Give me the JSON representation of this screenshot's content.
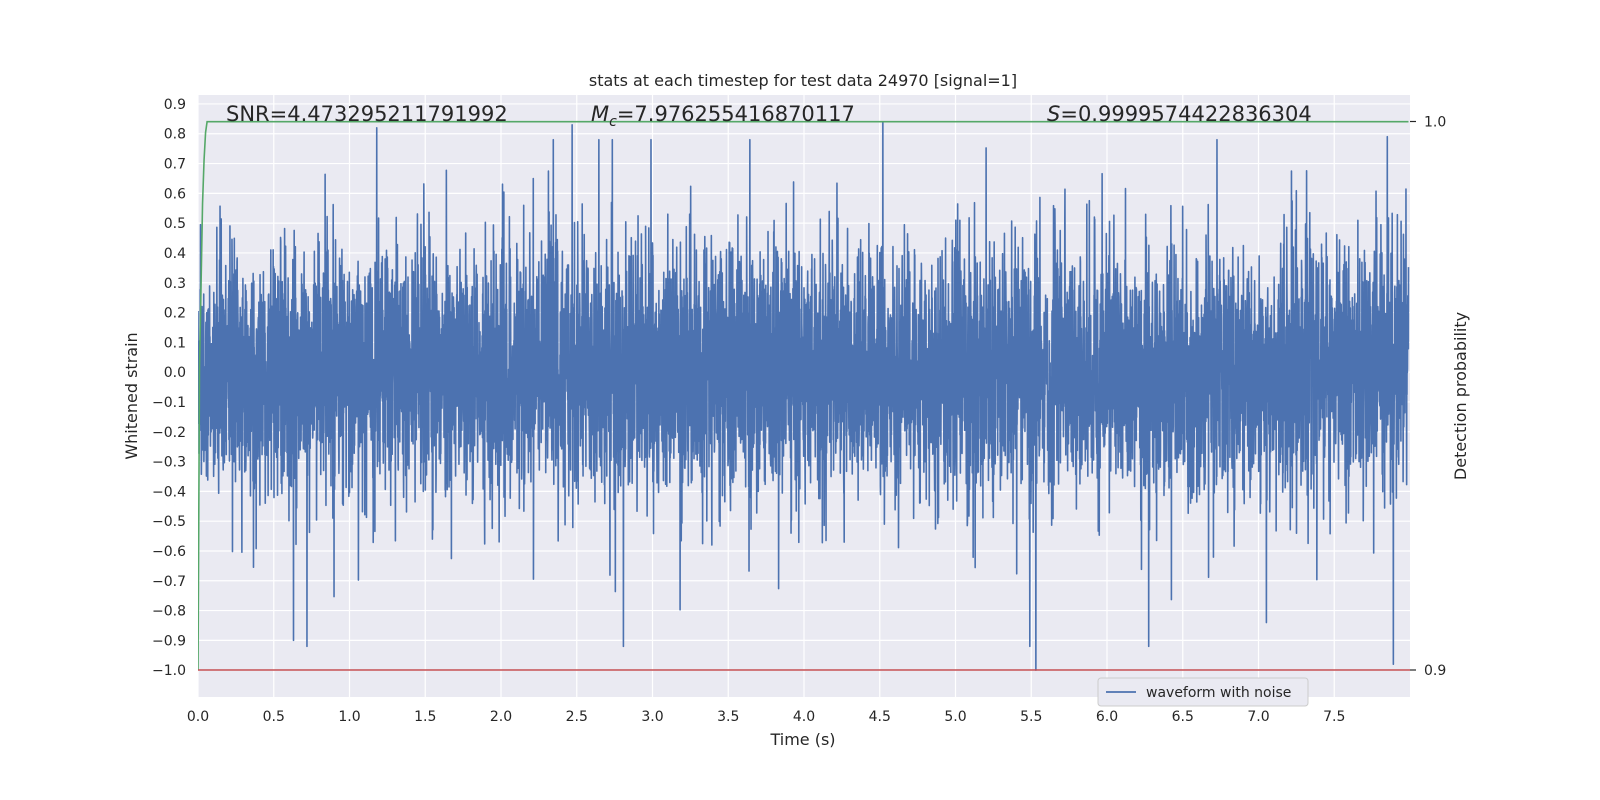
{
  "chart_data": {
    "type": "line",
    "title": "stats at each timestep for test data 24970 [signal=1]",
    "xlabel": "Time (s)",
    "ylabel": "Whitened strain",
    "y2label": "Detection probability",
    "xlim": [
      0.0,
      8.0
    ],
    "ylim": [
      -1.09,
      0.93
    ],
    "y2lim": [
      0.9,
      1.0
    ],
    "x_ticks": [
      "0.0",
      "0.5",
      "1.0",
      "1.5",
      "2.0",
      "2.5",
      "3.0",
      "3.5",
      "4.0",
      "4.5",
      "5.0",
      "5.5",
      "6.0",
      "6.5",
      "7.0",
      "7.5"
    ],
    "y_ticks": [
      "0.9",
      "0.8",
      "0.7",
      "0.6",
      "0.5",
      "0.4",
      "0.3",
      "0.2",
      "0.1",
      "0.0",
      "−0.1",
      "−0.2",
      "−0.3",
      "−0.4",
      "−0.5",
      "−0.6",
      "−0.7",
      "−0.8",
      "−0.9",
      "−1.0"
    ],
    "y2_ticks": [
      "1.0",
      "0.9"
    ],
    "grid": true,
    "legend": {
      "placement": "bottom-right",
      "entries": [
        "waveform with noise"
      ]
    },
    "annotations": {
      "snr": "SNR=4.473295211791992",
      "mc_symbol": "M",
      "mc_subscript": "c",
      "mc_value": "=7.976255416870117",
      "s_symbol": "S",
      "s_value": "=0.9999574422836304"
    },
    "series": [
      {
        "name": "waveform with noise",
        "color": "#4c72b0",
        "x_range": [
          0.0,
          7.99
        ],
        "typical_amplitude": 0.3,
        "extreme_points": [
          {
            "x": 0.63,
            "y": -0.9
          },
          {
            "x": 1.18,
            "y": 0.82
          },
          {
            "x": 2.47,
            "y": 0.83
          },
          {
            "x": 4.52,
            "y": 0.84
          },
          {
            "x": 5.53,
            "y": -1.0
          },
          {
            "x": 7.89,
            "y": -0.98
          },
          {
            "x": 7.85,
            "y": 0.79
          }
        ]
      },
      {
        "color": "#55a868",
        "axis": "right",
        "x": [
          0.0,
          0.01,
          0.02,
          0.03,
          0.04,
          0.05,
          0.06,
          7.99
        ],
        "values": [
          0.9,
          0.955,
          0.97,
          0.985,
          0.993,
          0.998,
          0.99996,
          0.99996
        ]
      },
      {
        "color": "#c44e52",
        "axis": "right",
        "x": [
          0.0,
          8.0
        ],
        "values": [
          0.9,
          0.9
        ]
      }
    ]
  }
}
